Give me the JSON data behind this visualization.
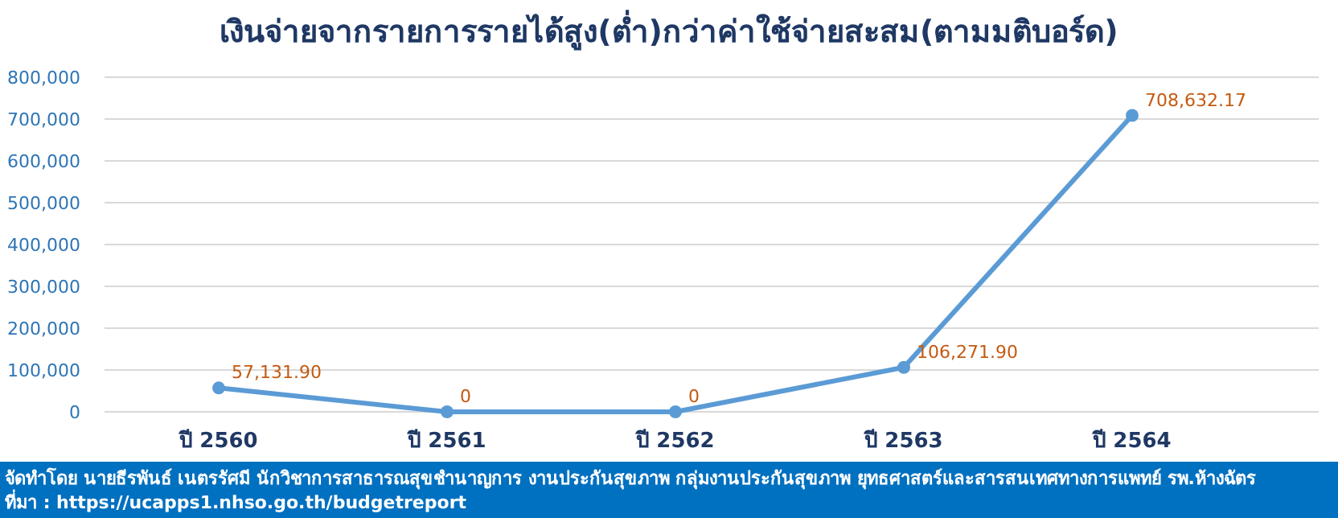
{
  "chart_data": {
    "type": "line",
    "title": "เงินจ่ายจากรายการรายได้สูง(ต่ำ)กว่าค่าใช้จ่ายสะสม(ตามมติบอร์ด)",
    "categories": [
      "ปี 2560",
      "ปี 2561",
      "ปี 2562",
      "ปี 2563",
      "ปี 2564"
    ],
    "series": [
      {
        "color": "#5b9bd5",
        "values": [
          57131.9,
          0,
          0,
          106271.9,
          708632.17
        ],
        "value_labels": [
          "57,131.90",
          "0",
          "0",
          "106,271.90",
          "708,632.17"
        ]
      }
    ],
    "ylim": [
      0,
      800000
    ],
    "yticks": [
      {
        "value": 0,
        "label": "0"
      },
      {
        "value": 100000,
        "label": "100,000"
      },
      {
        "value": 200000,
        "label": "200,000"
      },
      {
        "value": 300000,
        "label": "300,000"
      },
      {
        "value": 400000,
        "label": "400,000"
      },
      {
        "value": 500000,
        "label": "500,000"
      },
      {
        "value": 600000,
        "label": "600,000"
      },
      {
        "value": 700000,
        "label": "700,000"
      },
      {
        "value": 800000,
        "label": "800,000"
      }
    ],
    "grid": "y",
    "marker": "circle",
    "line_style": "solid",
    "annotations": [
      "จัดทำโดย นายธีรพันธ์ เนตรรัศมี นักวิชาการสาธารณสุขชำนาญการ งานประกันสุขภาพ กลุ่มงานประกันสุขภาพ ยุทธศาสตร์และสารสนเทศทางการแพทย์ รพ.ห้างฉัตร",
      "ที่มา : https://ucapps1.nhso.go.th/budgetreport"
    ]
  }
}
